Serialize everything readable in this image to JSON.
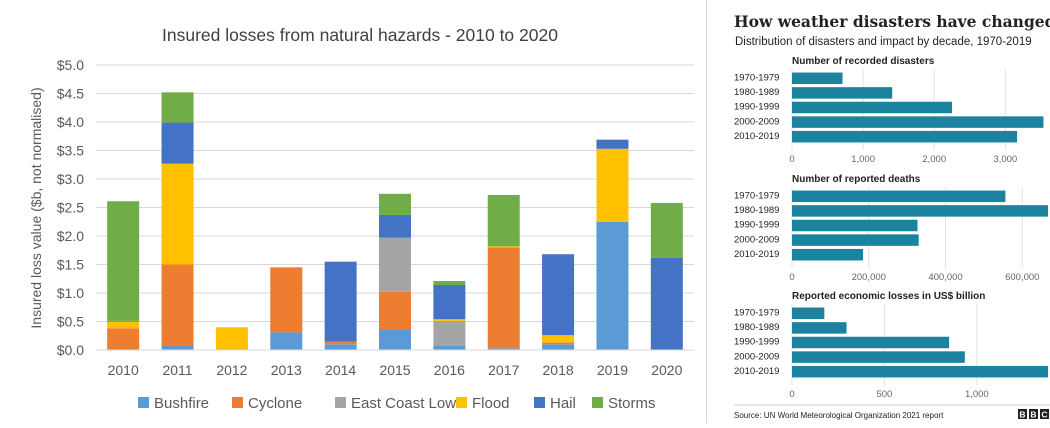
{
  "left_chart": {
    "chart_data": {
      "type": "bar",
      "stacked": true,
      "title": "Insured losses from natural hazards - 2010 to 2020",
      "xlabel": "",
      "ylabel": "Insured loss value ($b, not normalised)",
      "ylim": [
        0,
        5
      ],
      "y_ticks": [
        "$0.0",
        "$0.5",
        "$1.0",
        "$1.5",
        "$2.0",
        "$2.5",
        "$3.0",
        "$3.5",
        "$4.0",
        "$4.5",
        "$5.0"
      ],
      "categories": [
        "2010",
        "2011",
        "2012",
        "2013",
        "2014",
        "2015",
        "2016",
        "2017",
        "2018",
        "2019",
        "2020"
      ],
      "grid": true,
      "legend": "bottom",
      "series": [
        {
          "name": "Bushfire",
          "color": "#5b9bd5",
          "values": [
            0,
            0.08,
            0,
            0.31,
            0.1,
            0.36,
            0.07,
            0.03,
            0.1,
            2.25,
            0
          ]
        },
        {
          "name": "Cyclone",
          "color": "#ed7d31",
          "values": [
            0.38,
            1.42,
            0,
            1.14,
            0.05,
            0.66,
            0,
            1.77,
            0.03,
            0,
            0
          ]
        },
        {
          "name": "East Coast Low",
          "color": "#a5a5a5",
          "values": [
            0,
            0,
            0,
            0,
            0,
            0.95,
            0.44,
            0,
            0,
            0,
            0
          ]
        },
        {
          "name": "Flood",
          "color": "#ffc000",
          "values": [
            0.12,
            1.77,
            0.4,
            0,
            0,
            0,
            0.03,
            0.02,
            0.13,
            1.28,
            0
          ]
        },
        {
          "name": "Hail",
          "color": "#4472c4",
          "values": [
            0.01,
            0.72,
            0,
            0,
            1.4,
            0.4,
            0.6,
            0,
            1.42,
            0.16,
            1.62
          ]
        },
        {
          "name": "Storms",
          "color": "#70ad47",
          "values": [
            2.1,
            0.53,
            0,
            0,
            0,
            0.37,
            0.07,
            0.9,
            0,
            0,
            0.96
          ]
        }
      ]
    }
  },
  "right_chart": {
    "title": "How weather disasters have changed",
    "subtitle": "Distribution of disasters and impact by decade, 1970-2019",
    "source": "Source: UN World Meteorological Organization 2021 report",
    "logo": "BBC",
    "bar_color": "#1b839f",
    "chart_data": [
      {
        "type": "bar",
        "orientation": "horizontal",
        "title": "Number of recorded disasters",
        "categories": [
          "1970-1979",
          "1980-1989",
          "1990-1999",
          "2000-2009",
          "2010-2019"
        ],
        "values": [
          711,
          1410,
          2250,
          3536,
          3165
        ],
        "xlim": [
          0,
          3600
        ],
        "x_ticks": [
          {
            "value": 0,
            "label": "0"
          },
          {
            "value": 1000,
            "label": "1,000"
          },
          {
            "value": 2000,
            "label": "2,000"
          },
          {
            "value": 3000,
            "label": "3,000"
          }
        ]
      },
      {
        "type": "bar",
        "orientation": "horizontal",
        "title": "Number of reported deaths",
        "categories": [
          "1970-1979",
          "1980-1989",
          "1990-1999",
          "2000-2009",
          "2010-2019"
        ],
        "values": [
          556000,
          667000,
          327000,
          330000,
          185000
        ],
        "xlim": [
          0,
          667000
        ],
        "x_ticks": [
          {
            "value": 0,
            "label": "0"
          },
          {
            "value": 200000,
            "label": "200,000"
          },
          {
            "value": 400000,
            "label": "400,000"
          },
          {
            "value": 600000,
            "label": "600,000"
          }
        ]
      },
      {
        "type": "bar",
        "orientation": "horizontal",
        "title": "Reported economic losses in US$ billion",
        "categories": [
          "1970-1979",
          "1980-1989",
          "1990-1999",
          "2000-2009",
          "2010-2019"
        ],
        "values": [
          175,
          295,
          850,
          935,
          1385
        ],
        "xlim": [
          0,
          1385
        ],
        "x_ticks": [
          {
            "value": 0,
            "label": "0"
          },
          {
            "value": 500,
            "label": "500"
          },
          {
            "value": 1000,
            "label": "1,000"
          }
        ]
      }
    ]
  }
}
